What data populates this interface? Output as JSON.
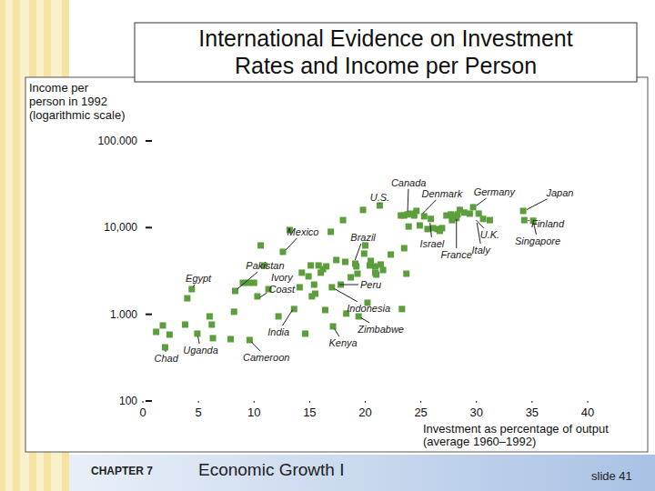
{
  "chart_data": {
    "type": "scatter",
    "title": "International Evidence on Investment\nRates and Income per Person",
    "x_label": "Investment as percentage of output\n(average 1960–1992)",
    "y_label": "Income per\nperson in 1992\n(logarithmic scale)",
    "log": "y",
    "grid": false,
    "marker": "square",
    "color": "#5c9e3c",
    "xlim": [
      0,
      40
    ],
    "xticks": [
      0,
      5,
      10,
      15,
      20,
      25,
      30,
      35,
      40
    ],
    "ylim": [
      100,
      100000
    ],
    "yticks": [
      100,
      {
        "value": 1000,
        "label": "1.000"
      },
      {
        "value": 10000,
        "label": "10,000"
      },
      {
        "value": 100000,
        "label": "100.000"
      }
    ],
    "x": [
      1.2,
      1.8,
      2.4,
      2.0,
      3.8,
      4.0,
      4.4,
      4.9,
      6.0,
      6.2,
      6.3,
      7.9,
      8.2,
      8.3,
      9.0,
      9.5,
      10.0,
      9.6,
      10.3,
      10.6,
      10.9,
      11.3,
      12.2,
      12.6,
      13.2,
      13.6,
      14.1,
      14.3,
      14.6,
      14.9,
      15.1,
      15.2,
      15.4,
      15.5,
      15.8,
      16.0,
      16.2,
      16.4,
      16.5,
      16.9,
      17.0,
      17.1,
      17.4,
      17.8,
      18.0,
      18.2,
      18.3,
      18.7,
      19.1,
      19.2,
      19.3,
      19.4,
      19.8,
      19.9,
      20.0,
      20.2,
      20.4,
      20.5,
      20.9,
      20.9,
      21.0,
      21.3,
      21.4,
      21.6,
      22.3,
      23.3,
      23.5,
      23.7,
      23.2,
      23.5,
      23.8,
      24.1,
      23.9,
      24.4,
      24.6,
      24.9,
      25.3,
      25.6,
      25.9,
      26.1,
      26.5,
      26.7,
      26.9,
      27.3,
      27.7,
      27.9,
      28.1,
      28.2,
      27.8,
      28.3,
      28.5,
      28.9,
      29.4,
      29.7,
      30.2,
      30.6,
      31.2,
      34.2,
      34.3,
      35.1
    ],
    "values": [
      627,
      743,
      583,
      416,
      761,
      1530,
      1950,
      598,
      946,
      761,
      530,
      517,
      1070,
      1860,
      2310,
      2310,
      2310,
      505,
      1610,
      6230,
      3660,
      1950,
      946,
      5260,
      9390,
      1150,
      2050,
      3020,
      598,
      2740,
      3660,
      1610,
      2200,
      1730,
      3660,
      3020,
      3320,
      1120,
      3570,
      8950,
      2050,
      725,
      4230,
      2200,
      12200,
      4030,
      1020,
      2670,
      3840,
      3570,
      2940,
      946,
      16000,
      5010,
      6230,
      1360,
      3660,
      4130,
      3020,
      3570,
      2870,
      18000,
      3750,
      3240,
      4890,
      1150,
      5790,
      2940,
      13800,
      13800,
      14200,
      14500,
      10300,
      13800,
      15600,
      10600,
      13500,
      9620,
      12600,
      9860,
      9620,
      9170,
      9860,
      13800,
      14200,
      13500,
      13500,
      12900,
      12200,
      14200,
      16000,
      14900,
      14500,
      17200,
      14500,
      12600,
      12200,
      15600,
      12200,
      12000
    ],
    "annotations": [
      {
        "text": "Canada",
        "x": 23.8,
        "y": 14200,
        "text_x": 23.9,
        "text_y": 33000
      },
      {
        "text": "U.S.",
        "x": 21.3,
        "y": 18000,
        "text_x": 21.3,
        "text_y": 22400
      },
      {
        "text": "Denmark",
        "x": 25.0,
        "y": 13800,
        "text_x": 26.9,
        "text_y": 24700
      },
      {
        "text": "Germany",
        "x": 29.8,
        "y": 17200,
        "text_x": 31.6,
        "text_y": 25900
      },
      {
        "text": "Japan",
        "x": 34.3,
        "y": 15600,
        "text_x": 37.5,
        "text_y": 25400
      },
      {
        "text": "Finland",
        "x": 34.4,
        "y": 12200,
        "text_x": 36.4,
        "text_y": 11100
      },
      {
        "text": "Singapore",
        "x": 35.1,
        "y": 12000,
        "text_x": 35.5,
        "text_y": 7030
      },
      {
        "text": "U.K.",
        "x": 29.8,
        "y": 12900,
        "text_x": 31.2,
        "text_y": 8320
      },
      {
        "text": "Italy",
        "x": 30.0,
        "y": 12200,
        "text_x": 30.4,
        "text_y": 5520
      },
      {
        "text": "France",
        "x": 28.2,
        "y": 13500,
        "text_x": 28.2,
        "text_y": 4890
      },
      {
        "text": "Israel",
        "x": 25.8,
        "y": 12200,
        "text_x": 26.0,
        "text_y": 6530
      },
      {
        "text": "Mexico",
        "x": 12.7,
        "y": 5260,
        "text_x": 14.4,
        "text_y": 8950
      },
      {
        "text": "Brazil",
        "x": 19.0,
        "y": 3940,
        "text_x": 19.8,
        "text_y": 7740
      },
      {
        "text": "Pakistan",
        "x": 8.3,
        "y": 1860,
        "text_x": 11.0,
        "text_y": 3660
      },
      {
        "text": "Egypt",
        "x": 4.4,
        "y": 1950,
        "text_x": 5.0,
        "text_y": 2610
      },
      {
        "text": "Ivory\nCoast",
        "x": 10.3,
        "y": 1500,
        "text_x": 12.5,
        "text_y": 2310
      },
      {
        "text": "Peru",
        "x": 17.4,
        "y": 2200,
        "text_x": 20.5,
        "text_y": 2200
      },
      {
        "text": "Indonesia",
        "x": 17.0,
        "y": 2050,
        "text_x": 20.3,
        "text_y": 1180
      },
      {
        "text": "India",
        "x": 13.6,
        "y": 1200,
        "text_x": 12.2,
        "text_y": 627
      },
      {
        "text": "Zimbabwe",
        "x": 19.4,
        "y": 946,
        "text_x": 21.4,
        "text_y": 675
      },
      {
        "text": "Kenya",
        "x": 17.1,
        "y": 725,
        "text_x": 18.0,
        "text_y": 470
      },
      {
        "text": "Uganda",
        "x": 4.9,
        "y": 598,
        "text_x": 5.2,
        "text_y": 387
      },
      {
        "text": "Chad",
        "x": 2.0,
        "y": 416,
        "text_x": 2.1,
        "text_y": 311
      },
      {
        "text": "Cameroon",
        "x": 9.6,
        "y": 505,
        "text_x": 11.1,
        "text_y": 319
      }
    ]
  },
  "slide": {
    "chapter": "CHAPTER 7",
    "section": "Economic Growth I",
    "slide_label": "slide 41"
  }
}
